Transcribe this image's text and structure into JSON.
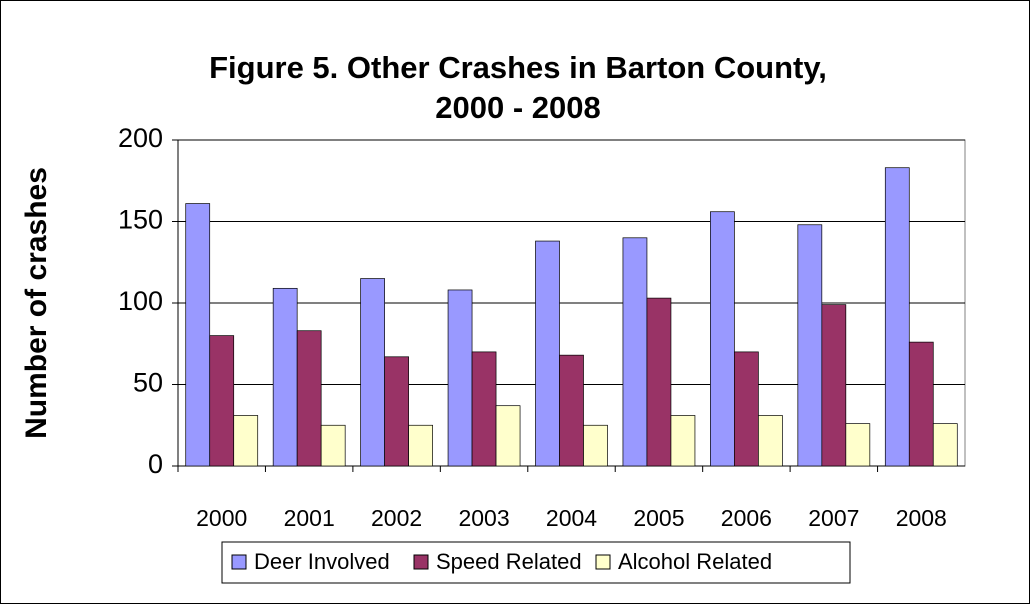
{
  "chart_data": {
    "type": "bar",
    "title": [
      "Figure 5. Other Crashes in Barton County,",
      "2000 - 2008"
    ],
    "y_label": "Number of crashes",
    "categories": [
      "2000",
      "2001",
      "2002",
      "2003",
      "2004",
      "2005",
      "2006",
      "2007",
      "2008"
    ],
    "series": [
      {
        "name": "Deer Involved",
        "color": "#9999ff",
        "values": [
          161,
          109,
          115,
          108,
          138,
          140,
          156,
          148,
          183
        ]
      },
      {
        "name": "Speed Related",
        "color": "#993366",
        "values": [
          80,
          83,
          67,
          70,
          68,
          103,
          70,
          99,
          76
        ]
      },
      {
        "name": "Alcohol Related",
        "color": "#ffffcc",
        "values": [
          31,
          25,
          25,
          37,
          25,
          31,
          31,
          26,
          26
        ]
      }
    ],
    "ylim": [
      0,
      200
    ],
    "yticks": [
      0,
      50,
      100,
      150,
      200
    ],
    "grid": true,
    "legend": "bottom"
  }
}
